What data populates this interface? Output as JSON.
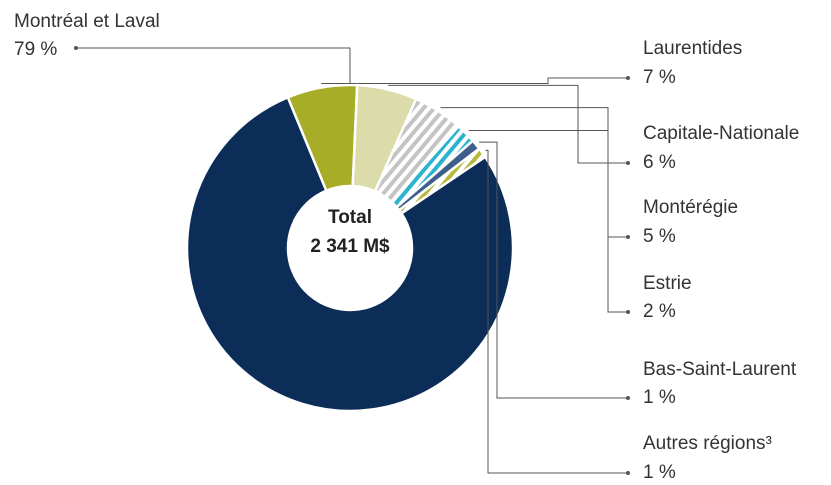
{
  "chart_data": {
    "type": "donut",
    "center_label": [
      "Total",
      "2 341 M$"
    ],
    "categories": [
      "Montréal et Laval",
      "Laurentides",
      "Capitale-Nationale",
      "Montérégie",
      "Estrie",
      "Bas-Saint-Laurent",
      "Autres régions³"
    ],
    "values": [
      79,
      7,
      6,
      5,
      2,
      1,
      1
    ],
    "value_labels": [
      "79 %",
      "7 %",
      "6 %",
      "5 %",
      "2 %",
      "1 %",
      "1 %"
    ],
    "colors": [
      "#0b2d57",
      "#a8ad28",
      "#dcdcaa",
      "#c4c4c4",
      "#2bb3cf",
      "#3e5f8a",
      "#b5b83a"
    ],
    "hatch": [
      false,
      false,
      false,
      true,
      true,
      false,
      true
    ]
  }
}
